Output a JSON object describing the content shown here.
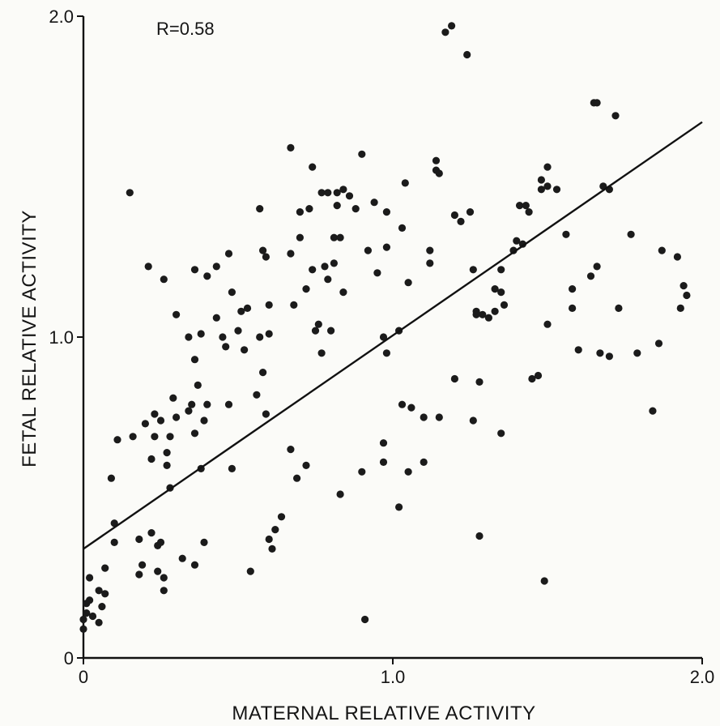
{
  "chart_data": {
    "type": "scatter",
    "title": "",
    "annotation": "R=0.58",
    "xlabel": "MATERNAL RELATIVE ACTIVITY",
    "ylabel": "FETAL RELATIVE ACTIVITY",
    "xlim": [
      0,
      2.0
    ],
    "ylim": [
      0,
      2.0
    ],
    "x_ticks": [
      {
        "value": 0,
        "label": "0"
      },
      {
        "value": 1.0,
        "label": "1.0"
      },
      {
        "value": 2.0,
        "label": "2.0"
      }
    ],
    "y_ticks": [
      {
        "value": 0,
        "label": "0"
      },
      {
        "value": 1.0,
        "label": "1.0"
      },
      {
        "value": 2.0,
        "label": "2.0"
      }
    ],
    "grid": false,
    "regression_line": {
      "x": [
        0.0,
        2.0
      ],
      "y": [
        0.34,
        1.67
      ]
    },
    "series": [
      {
        "points": [
          [
            0.0,
            0.12
          ],
          [
            0.0,
            0.09
          ],
          [
            0.01,
            0.17
          ],
          [
            0.01,
            0.14
          ],
          [
            0.02,
            0.18
          ],
          [
            0.03,
            0.13
          ],
          [
            0.05,
            0.11
          ],
          [
            0.06,
            0.16
          ],
          [
            0.07,
            0.2
          ],
          [
            0.02,
            0.25
          ],
          [
            0.05,
            0.21
          ],
          [
            0.07,
            0.28
          ],
          [
            0.09,
            0.56
          ],
          [
            0.1,
            0.42
          ],
          [
            0.1,
            0.36
          ],
          [
            0.11,
            0.68
          ],
          [
            0.15,
            1.45
          ],
          [
            0.16,
            0.69
          ],
          [
            0.18,
            0.37
          ],
          [
            0.18,
            0.26
          ],
          [
            0.19,
            0.29
          ],
          [
            0.2,
            0.73
          ],
          [
            0.21,
            1.22
          ],
          [
            0.22,
            0.62
          ],
          [
            0.22,
            0.39
          ],
          [
            0.23,
            0.76
          ],
          [
            0.23,
            0.69
          ],
          [
            0.24,
            0.35
          ],
          [
            0.24,
            0.27
          ],
          [
            0.25,
            0.74
          ],
          [
            0.25,
            0.36
          ],
          [
            0.26,
            1.18
          ],
          [
            0.26,
            0.25
          ],
          [
            0.26,
            0.21
          ],
          [
            0.27,
            0.64
          ],
          [
            0.27,
            0.6
          ],
          [
            0.28,
            0.69
          ],
          [
            0.28,
            0.53
          ],
          [
            0.29,
            0.81
          ],
          [
            0.3,
            1.07
          ],
          [
            0.3,
            0.75
          ],
          [
            0.32,
            0.31
          ],
          [
            0.34,
            1.0
          ],
          [
            0.34,
            0.77
          ],
          [
            0.35,
            0.79
          ],
          [
            0.36,
            1.21
          ],
          [
            0.36,
            0.93
          ],
          [
            0.36,
            0.7
          ],
          [
            0.36,
            0.29
          ],
          [
            0.37,
            0.85
          ],
          [
            0.38,
            1.01
          ],
          [
            0.38,
            0.59
          ],
          [
            0.39,
            0.74
          ],
          [
            0.39,
            0.36
          ],
          [
            0.4,
            1.19
          ],
          [
            0.4,
            0.79
          ],
          [
            0.43,
            1.22
          ],
          [
            0.43,
            1.06
          ],
          [
            0.45,
            1.0
          ],
          [
            0.46,
            0.97
          ],
          [
            0.47,
            1.26
          ],
          [
            0.47,
            0.79
          ],
          [
            0.48,
            1.14
          ],
          [
            0.48,
            0.59
          ],
          [
            0.5,
            1.02
          ],
          [
            0.51,
            1.08
          ],
          [
            0.52,
            0.96
          ],
          [
            0.53,
            1.09
          ],
          [
            0.54,
            0.27
          ],
          [
            0.56,
            0.82
          ],
          [
            0.57,
            1.4
          ],
          [
            0.57,
            1.0
          ],
          [
            0.58,
            1.27
          ],
          [
            0.58,
            0.89
          ],
          [
            0.59,
            1.25
          ],
          [
            0.59,
            0.76
          ],
          [
            0.6,
            1.1
          ],
          [
            0.6,
            1.01
          ],
          [
            0.6,
            0.37
          ],
          [
            0.61,
            0.34
          ],
          [
            0.62,
            0.4
          ],
          [
            0.64,
            0.44
          ],
          [
            0.67,
            1.59
          ],
          [
            0.67,
            0.65
          ],
          [
            0.67,
            1.26
          ],
          [
            0.68,
            1.1
          ],
          [
            0.69,
            0.56
          ],
          [
            0.7,
            1.39
          ],
          [
            0.7,
            1.31
          ],
          [
            0.72,
            1.15
          ],
          [
            0.72,
            0.6
          ],
          [
            0.73,
            1.4
          ],
          [
            0.74,
            1.53
          ],
          [
            0.74,
            1.21
          ],
          [
            0.75,
            1.02
          ],
          [
            0.76,
            1.04
          ],
          [
            0.77,
            1.45
          ],
          [
            0.77,
            0.95
          ],
          [
            0.78,
            1.22
          ],
          [
            0.79,
            1.45
          ],
          [
            0.79,
            1.18
          ],
          [
            0.8,
            1.02
          ],
          [
            0.81,
            1.31
          ],
          [
            0.81,
            1.23
          ],
          [
            0.82,
            1.45
          ],
          [
            0.82,
            1.41
          ],
          [
            0.83,
            1.31
          ],
          [
            0.83,
            0.51
          ],
          [
            0.84,
            1.46
          ],
          [
            0.84,
            1.14
          ],
          [
            0.86,
            1.44
          ],
          [
            0.88,
            1.4
          ],
          [
            0.9,
            1.57
          ],
          [
            0.9,
            0.58
          ],
          [
            0.91,
            0.12
          ],
          [
            0.92,
            1.27
          ],
          [
            0.94,
            1.42
          ],
          [
            0.95,
            1.2
          ],
          [
            0.97,
            1.0
          ],
          [
            0.97,
            0.67
          ],
          [
            0.97,
            0.61
          ],
          [
            0.98,
            1.28
          ],
          [
            0.98,
            0.95
          ],
          [
            0.98,
            1.39
          ],
          [
            1.02,
            1.02
          ],
          [
            1.02,
            0.47
          ],
          [
            1.03,
            1.34
          ],
          [
            1.03,
            0.79
          ],
          [
            1.04,
            1.48
          ],
          [
            1.05,
            1.17
          ],
          [
            1.05,
            0.58
          ],
          [
            1.06,
            0.78
          ],
          [
            1.1,
            0.75
          ],
          [
            1.1,
            0.61
          ],
          [
            1.12,
            1.23
          ],
          [
            1.12,
            1.27
          ],
          [
            1.14,
            1.52
          ],
          [
            1.14,
            1.55
          ],
          [
            1.15,
            1.51
          ],
          [
            1.15,
            0.75
          ],
          [
            1.17,
            1.95
          ],
          [
            1.19,
            1.97
          ],
          [
            1.2,
            1.38
          ],
          [
            1.2,
            0.87
          ],
          [
            1.22,
            1.36
          ],
          [
            1.24,
            1.88
          ],
          [
            1.25,
            1.39
          ],
          [
            1.26,
            1.21
          ],
          [
            1.26,
            0.74
          ],
          [
            1.27,
            1.08
          ],
          [
            1.27,
            1.07
          ],
          [
            1.28,
            0.86
          ],
          [
            1.28,
            0.38
          ],
          [
            1.29,
            1.07
          ],
          [
            1.31,
            1.06
          ],
          [
            1.33,
            1.15
          ],
          [
            1.33,
            1.08
          ],
          [
            1.35,
            1.21
          ],
          [
            1.35,
            1.14
          ],
          [
            1.35,
            0.7
          ],
          [
            1.36,
            1.1
          ],
          [
            1.39,
            1.27
          ],
          [
            1.4,
            1.3
          ],
          [
            1.41,
            1.41
          ],
          [
            1.42,
            1.29
          ],
          [
            1.43,
            1.41
          ],
          [
            1.44,
            1.39
          ],
          [
            1.45,
            0.87
          ],
          [
            1.47,
            0.88
          ],
          [
            1.48,
            1.46
          ],
          [
            1.48,
            1.49
          ],
          [
            1.49,
            0.24
          ],
          [
            1.5,
            1.53
          ],
          [
            1.5,
            1.04
          ],
          [
            1.5,
            1.47
          ],
          [
            1.53,
            1.46
          ],
          [
            1.56,
            1.32
          ],
          [
            1.58,
            1.09
          ],
          [
            1.58,
            1.15
          ],
          [
            1.6,
            0.96
          ],
          [
            1.64,
            1.19
          ],
          [
            1.65,
            1.73
          ],
          [
            1.66,
            1.73
          ],
          [
            1.66,
            1.22
          ],
          [
            1.67,
            0.95
          ],
          [
            1.68,
            1.47
          ],
          [
            1.7,
            1.46
          ],
          [
            1.7,
            0.94
          ],
          [
            1.72,
            1.69
          ],
          [
            1.73,
            1.09
          ],
          [
            1.77,
            1.32
          ],
          [
            1.79,
            0.95
          ],
          [
            1.84,
            0.77
          ],
          [
            1.86,
            0.98
          ],
          [
            1.87,
            1.27
          ],
          [
            1.92,
            1.25
          ],
          [
            1.93,
            1.09
          ],
          [
            1.94,
            1.16
          ],
          [
            1.95,
            1.13
          ]
        ]
      }
    ]
  }
}
